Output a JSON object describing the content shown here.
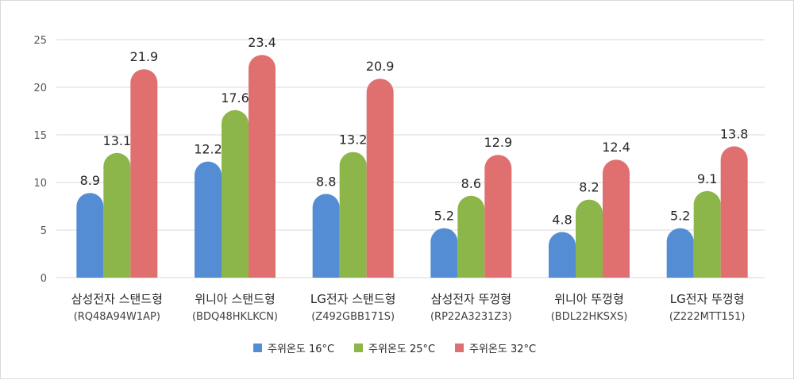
{
  "chart_data": {
    "type": "bar",
    "categories": [
      {
        "name": "삼성전자 스탠드형",
        "model": "(RQ48A94W1AP)"
      },
      {
        "name": "위니아 스탠드형",
        "model": "(BDQ48HKLKCN)"
      },
      {
        "name": "LG전자 스탠드형",
        "model": "(Z492GBB171S)"
      },
      {
        "name": "삼성전자 뚜껑형",
        "model": "(RP22A3231Z3)"
      },
      {
        "name": "위니아 뚜껑형",
        "model": "(BDL22HKSXS)"
      },
      {
        "name": "LG전자 뚜껑형",
        "model": "(Z222MTT151)"
      }
    ],
    "series": [
      {
        "name": "주위온도 16°C",
        "color": "#548dd4",
        "values": [
          8.9,
          12.2,
          8.8,
          5.2,
          4.8,
          5.2
        ]
      },
      {
        "name": "주위온도 25°C",
        "color": "#8db64a",
        "values": [
          13.1,
          17.6,
          13.2,
          8.6,
          8.2,
          9.1
        ]
      },
      {
        "name": "주위온도 32°C",
        "color": "#e07070",
        "values": [
          21.9,
          23.4,
          20.9,
          12.9,
          12.4,
          13.8
        ]
      }
    ],
    "title": "",
    "xlabel": "",
    "ylabel": "",
    "ylim": [
      0,
      25
    ],
    "yticks": [
      0,
      5,
      10,
      15,
      20,
      25
    ],
    "grid": true,
    "legend_position": "bottom",
    "gridline_color": "#d9d9d9"
  }
}
